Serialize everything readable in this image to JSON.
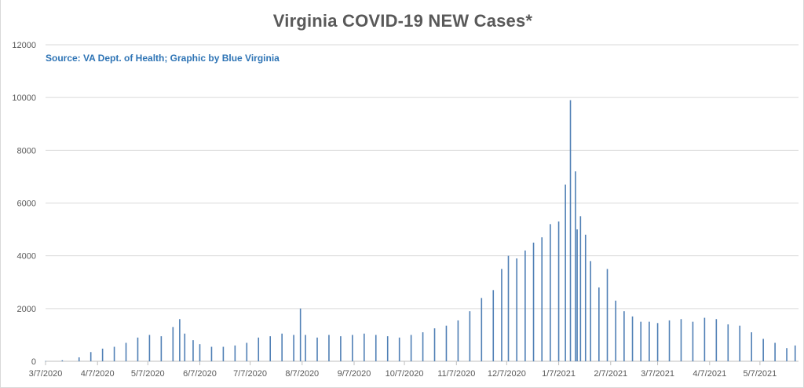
{
  "chart": {
    "title": "Virginia COVID-19 NEW Cases*",
    "source_note": "Source: VA Dept. of Health; Graphic by Blue Virginia"
  },
  "colors": {
    "bar": "#4f7fb5",
    "gridline": "#d9d9d9",
    "axis": "#bfbfbf",
    "title": "#595959",
    "source_note": "#2e74b5"
  },
  "chart_data": {
    "type": "bar",
    "title": "Virginia COVID-19 NEW Cases*",
    "xlabel": "",
    "ylabel": "",
    "ylim": [
      0,
      12000
    ],
    "yticks": [
      0,
      2000,
      4000,
      6000,
      8000,
      10000,
      12000
    ],
    "xlim": [
      "2020-03-07",
      "2021-05-30"
    ],
    "xticks": [
      "3/7/2020",
      "4/7/2020",
      "5/7/2020",
      "6/7/2020",
      "7/7/2020",
      "8/7/2020",
      "9/7/2020",
      "10/7/2020",
      "11/7/2020",
      "12/7/2020",
      "1/7/2021",
      "2/7/2021",
      "3/7/2021",
      "4/7/2021",
      "5/7/2021"
    ],
    "grid": true,
    "legend": "none",
    "series": [
      {
        "x": [
          "2020-03-07",
          "2020-03-17",
          "2020-03-27",
          "2020-04-03",
          "2020-04-10",
          "2020-04-17",
          "2020-04-24",
          "2020-05-01",
          "2020-05-08",
          "2020-05-15",
          "2020-05-22",
          "2020-05-26",
          "2020-05-29",
          "2020-06-03",
          "2020-06-07",
          "2020-06-14",
          "2020-06-21",
          "2020-06-28",
          "2020-07-05",
          "2020-07-12",
          "2020-07-19",
          "2020-07-26",
          "2020-08-02",
          "2020-08-06",
          "2020-08-09",
          "2020-08-16",
          "2020-08-23",
          "2020-08-30",
          "2020-09-06",
          "2020-09-13",
          "2020-09-20",
          "2020-09-27",
          "2020-10-04",
          "2020-10-11",
          "2020-10-18",
          "2020-10-25",
          "2020-11-01",
          "2020-11-08",
          "2020-11-15",
          "2020-11-22",
          "2020-11-29",
          "2020-12-04",
          "2020-12-08",
          "2020-12-13",
          "2020-12-18",
          "2020-12-23",
          "2020-12-28",
          "2021-01-02",
          "2021-01-07",
          "2021-01-11",
          "2021-01-14",
          "2021-01-17",
          "2021-01-18",
          "2021-01-20",
          "2021-01-23",
          "2021-01-26",
          "2021-01-31",
          "2021-02-05",
          "2021-02-10",
          "2021-02-15",
          "2021-02-20",
          "2021-02-25",
          "2021-03-02",
          "2021-03-07",
          "2021-03-14",
          "2021-03-21",
          "2021-03-28",
          "2021-04-04",
          "2021-04-11",
          "2021-04-18",
          "2021-04-25",
          "2021-05-02",
          "2021-05-09",
          "2021-05-16",
          "2021-05-23",
          "2021-05-28"
        ],
        "values": [
          10,
          40,
          150,
          350,
          480,
          550,
          700,
          900,
          1000,
          950,
          1300,
          1600,
          1050,
          800,
          650,
          550,
          550,
          600,
          700,
          900,
          950,
          1050,
          1000,
          2000,
          1000,
          900,
          1000,
          950,
          1000,
          1050,
          1000,
          950,
          900,
          1000,
          1100,
          1250,
          1350,
          1550,
          1900,
          2400,
          2700,
          3500,
          4000,
          3900,
          4200,
          4500,
          4700,
          5200,
          5300,
          6700,
          9900,
          7200,
          5000,
          5500,
          4800,
          3800,
          2800,
          3500,
          2300,
          1900,
          1700,
          1500,
          1500,
          1450,
          1550,
          1600,
          1500,
          1650,
          1600,
          1400,
          1350,
          1100,
          850,
          700,
          500,
          600
        ]
      }
    ]
  }
}
